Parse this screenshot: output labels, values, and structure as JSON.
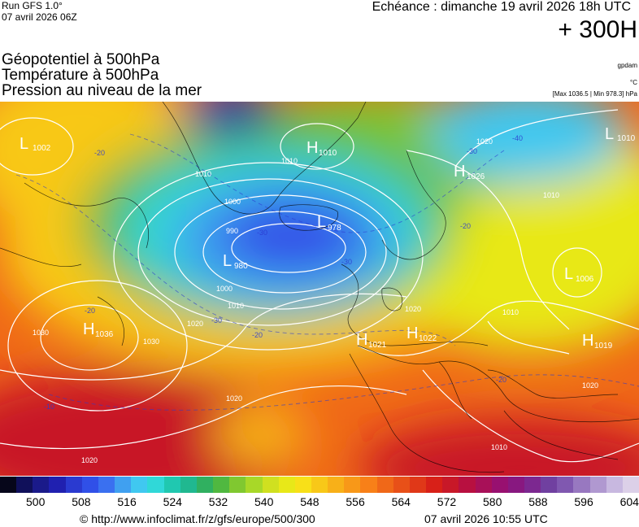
{
  "header": {
    "run_line1": "Run GFS 1.0°",
    "run_line2": "07 avril 2026 06Z",
    "echeance": "Echéance : dimanche 19 avril 2026 18h UTC",
    "lead_time": "+ 300H"
  },
  "titles": {
    "line1": "Géopotentiel à 500hPa",
    "line2": "Température à 500hPa",
    "line3": "Pression au niveau de la mer"
  },
  "units": {
    "geopotential": "gpdam",
    "temperature": "°C",
    "pressure_range": "[Max 1036.5 | Min 978.3] hPa"
  },
  "map": {
    "pressure_centers": [
      {
        "type": "L",
        "value": "1002"
      },
      {
        "type": "H",
        "value": "1010"
      },
      {
        "type": "L",
        "value": "1010"
      },
      {
        "type": "H",
        "value": "1026"
      },
      {
        "type": "L",
        "value": "978"
      },
      {
        "type": "L",
        "value": "980"
      },
      {
        "type": "L",
        "value": "1006"
      },
      {
        "type": "H",
        "value": "1036"
      },
      {
        "type": "H",
        "value": "1021"
      },
      {
        "type": "H",
        "value": "1022"
      },
      {
        "type": "H",
        "value": "1019"
      }
    ],
    "isobar_labels": [
      "1010",
      "1000",
      "990",
      "1000",
      "1010",
      "1020",
      "1030",
      "1030",
      "1020",
      "1020",
      "1020",
      "1020",
      "1010",
      "1010",
      "1010",
      "1020",
      "1010"
    ],
    "isotherm_labels": [
      "-20",
      "-20",
      "-30",
      "-30",
      "-30",
      "-40",
      "-20",
      "-30",
      "-20",
      "-20",
      "-10"
    ]
  },
  "scale": {
    "labels": [
      "500",
      "508",
      "516",
      "524",
      "532",
      "540",
      "548",
      "556",
      "564",
      "572",
      "580",
      "588",
      "596",
      "604"
    ],
    "colors": [
      "#06061a",
      "#10105a",
      "#1a1a8a",
      "#2020b0",
      "#2a3ad0",
      "#3050e8",
      "#3a70f0",
      "#40a0f0",
      "#40c8f0",
      "#30d8d8",
      "#20c8b0",
      "#20b890",
      "#30b060",
      "#50b840",
      "#80c830",
      "#a8d828",
      "#d0e020",
      "#e8e818",
      "#f8e018",
      "#f8c818",
      "#f8b018",
      "#f89818",
      "#f88018",
      "#f06818",
      "#e85018",
      "#e03818",
      "#d82018",
      "#c81828",
      "#b81040",
      "#a81058",
      "#981070",
      "#881880",
      "#7c2890",
      "#7040a0",
      "#8058b0",
      "#9878c0",
      "#b098d0",
      "#c8b8e0",
      "#dcd0e8"
    ]
  },
  "footer": {
    "url": "© http://www.infoclimat.fr/z/gfs/europe/500/300",
    "timestamp": "07 avril 2026 10:55 UTC"
  }
}
